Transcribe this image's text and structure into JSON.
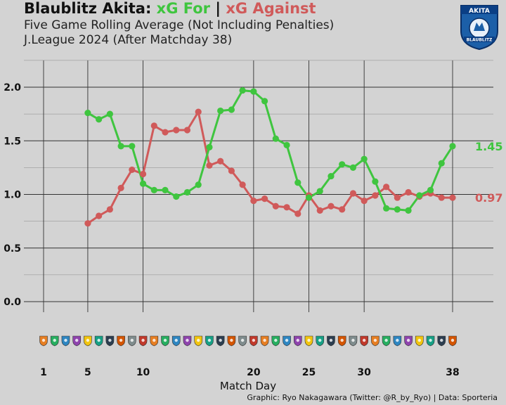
{
  "title": {
    "team": "Blaublitz Akita:",
    "for_label": "xG For",
    "separator": "|",
    "against_label": "xG Against"
  },
  "subtitle": "Five Game Rolling Average (Not Including Penalties)",
  "subtitle2": "J.League 2024 (After Matchday 38)",
  "caption": "Graphic: Ryo Nakagawara (Twitter: @R_by_Ryo) | Data: Sporteria",
  "badge": {
    "top_text": "AKITA",
    "main_text": "BLAUBLITZ",
    "icon": "blaublitz-akita-crest-icon"
  },
  "colors": {
    "for": "#3fc53f",
    "against": "#d05a5a",
    "grid": "#222222",
    "background": "#d3d3d3"
  },
  "chart_data": {
    "type": "line",
    "title": "Five Game Rolling Average (Not Including Penalties)",
    "xlabel": "Match Day",
    "ylabel": "",
    "xlim": [
      1,
      38
    ],
    "ylim": [
      0,
      2.0
    ],
    "x_ticks": [
      1,
      5,
      10,
      20,
      25,
      30,
      38
    ],
    "y_ticks": [
      0.0,
      0.5,
      1.0,
      1.5,
      2.0
    ],
    "y_tick_labels": [
      "0.0",
      "0.5",
      "1.0",
      "1.5",
      "2.0"
    ],
    "grid": true,
    "series": [
      {
        "name": "xG For",
        "color": "#3fc53f",
        "x": [
          5,
          6,
          7,
          8,
          9,
          10,
          11,
          12,
          13,
          14,
          15,
          16,
          17,
          18,
          19,
          20,
          21,
          22,
          23,
          24,
          25,
          26,
          27,
          28,
          29,
          30,
          31,
          32,
          33,
          34,
          35,
          36,
          37,
          38
        ],
        "values": [
          1.76,
          1.7,
          1.75,
          1.45,
          1.45,
          1.1,
          1.04,
          1.04,
          0.98,
          1.02,
          1.09,
          1.44,
          1.78,
          1.79,
          1.97,
          1.96,
          1.87,
          1.52,
          1.46,
          1.11,
          0.97,
          1.03,
          1.17,
          1.28,
          1.25,
          1.33,
          1.12,
          0.87,
          0.86,
          0.85,
          0.99,
          1.04,
          1.29,
          1.45
        ],
        "end_label": "1.45"
      },
      {
        "name": "xG Against",
        "color": "#d05a5a",
        "x": [
          5,
          6,
          7,
          8,
          9,
          10,
          11,
          12,
          13,
          14,
          15,
          16,
          17,
          18,
          19,
          20,
          21,
          22,
          23,
          24,
          25,
          26,
          27,
          28,
          29,
          30,
          31,
          32,
          33,
          34,
          35,
          36,
          37,
          38
        ],
        "values": [
          0.73,
          0.8,
          0.86,
          1.06,
          1.23,
          1.19,
          1.64,
          1.58,
          1.6,
          1.6,
          1.77,
          1.27,
          1.31,
          1.22,
          1.09,
          0.94,
          0.96,
          0.89,
          0.88,
          0.82,
          0.99,
          0.85,
          0.89,
          0.86,
          1.01,
          0.94,
          0.99,
          1.07,
          0.97,
          1.02,
          0.98,
          1.01,
          0.97,
          0.97
        ],
        "end_label": "0.97"
      }
    ],
    "opponent_logo_row": "team-logo-icons"
  }
}
